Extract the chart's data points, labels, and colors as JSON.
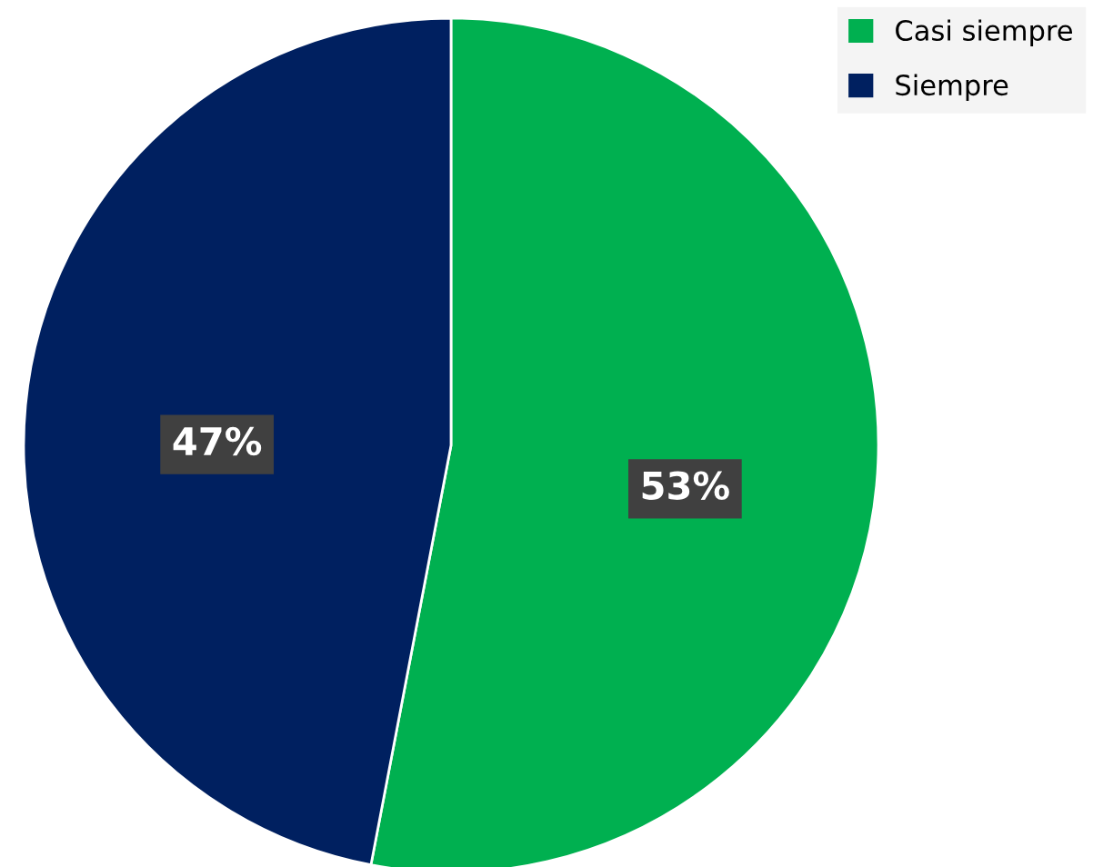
{
  "chart_data": {
    "type": "pie",
    "categories": [
      "Casi siempre",
      "Siempre"
    ],
    "values": [
      53,
      47
    ],
    "colors": [
      "#00b050",
      "#002060"
    ],
    "value_labels": [
      "53%",
      "47%"
    ],
    "legend": "top right"
  }
}
